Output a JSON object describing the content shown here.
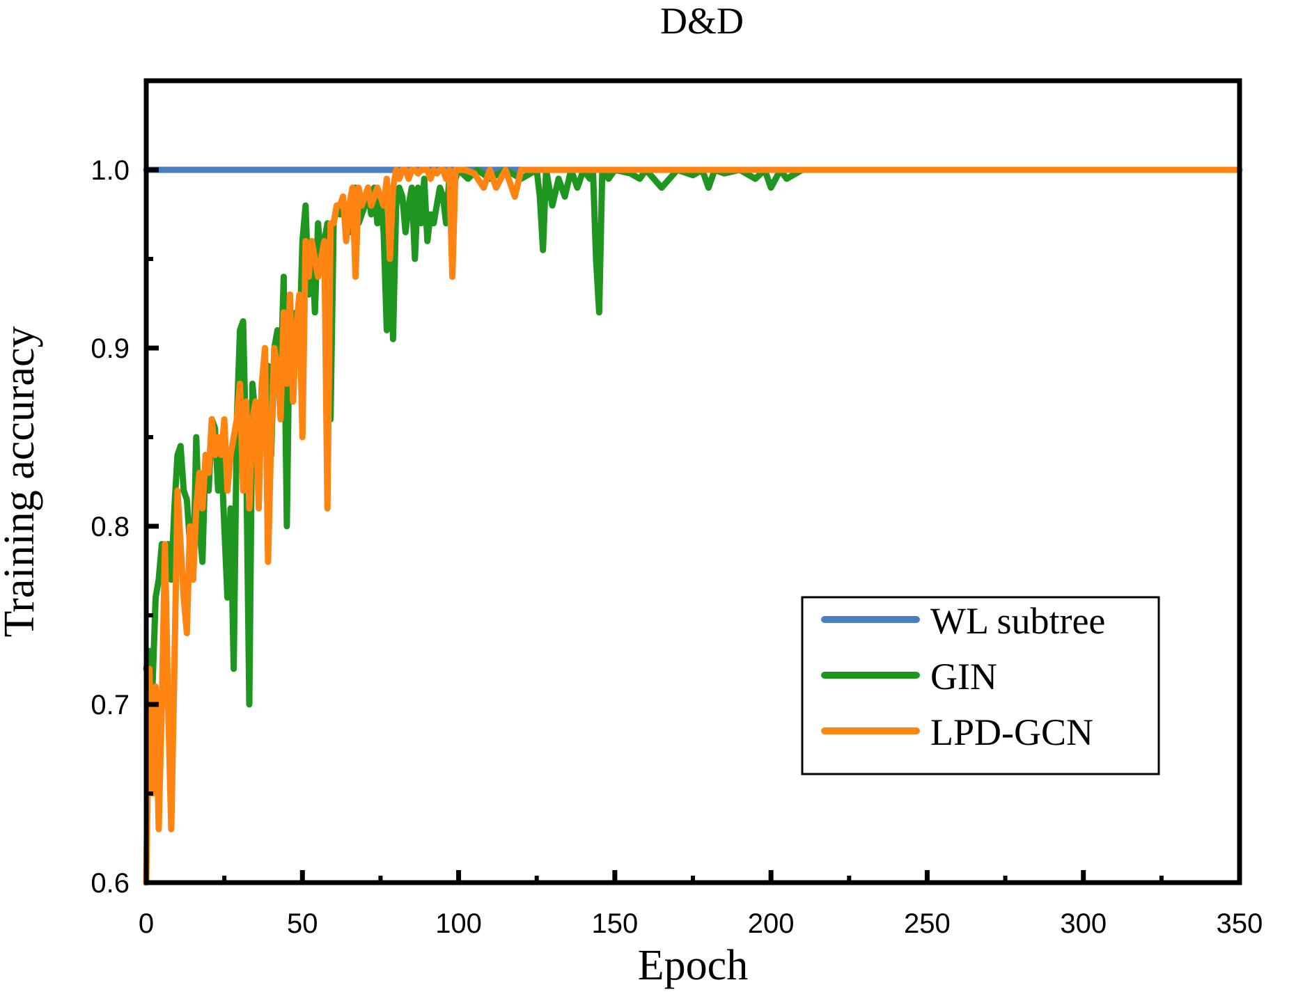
{
  "chart_data": {
    "type": "line",
    "title": "D&D",
    "xlabel": "Epoch",
    "ylabel": "Training accuracy",
    "xlim": [
      0,
      350
    ],
    "ylim": [
      0.6,
      1.05
    ],
    "xticks": [
      0,
      50,
      100,
      150,
      200,
      250,
      300,
      350
    ],
    "xtick_labels": [
      "0",
      "50",
      "100",
      "150",
      "200",
      "250",
      "300",
      "350"
    ],
    "yticks": [
      0.6,
      0.7,
      0.8,
      0.9,
      1.0
    ],
    "ytick_labels": [
      "0.6",
      "0.7",
      "0.8",
      "0.9",
      "1.0"
    ],
    "legend_position": "lower-right",
    "series": [
      {
        "name": "WL subtree",
        "color": "#4a7fbf",
        "x": [
          0,
          350
        ],
        "y": [
          1.0,
          1.0
        ]
      },
      {
        "name": "GIN",
        "color": "#1e9620",
        "x": [
          0,
          1,
          2,
          3,
          4,
          5,
          6,
          7,
          8,
          9,
          10,
          11,
          12,
          13,
          14,
          15,
          16,
          17,
          18,
          19,
          20,
          21,
          22,
          23,
          24,
          25,
          26,
          27,
          28,
          29,
          30,
          31,
          32,
          33,
          34,
          35,
          36,
          37,
          38,
          39,
          40,
          41,
          42,
          43,
          44,
          45,
          46,
          47,
          48,
          49,
          50,
          51,
          52,
          53,
          54,
          55,
          56,
          57,
          58,
          59,
          60,
          61,
          62,
          63,
          64,
          65,
          66,
          67,
          68,
          69,
          70,
          71,
          72,
          73,
          74,
          75,
          76,
          77,
          78,
          79,
          80,
          81,
          82,
          83,
          84,
          85,
          86,
          87,
          88,
          89,
          90,
          91,
          92,
          93,
          94,
          95,
          96,
          97,
          98,
          99,
          100,
          103,
          106,
          110,
          115,
          120,
          125,
          126,
          127,
          128,
          130,
          132,
          134,
          136,
          138,
          140,
          142,
          143,
          144,
          145,
          146,
          148,
          150,
          155,
          158,
          160,
          165,
          170,
          175,
          178,
          180,
          182,
          185,
          190,
          195,
          198,
          200,
          203,
          205,
          210,
          220,
          230,
          240,
          250,
          260,
          270,
          280,
          290,
          300,
          310,
          320,
          330,
          340,
          350
        ],
        "y": [
          0.72,
          0.73,
          0.71,
          0.76,
          0.77,
          0.79,
          0.77,
          0.79,
          0.77,
          0.81,
          0.84,
          0.845,
          0.82,
          0.815,
          0.79,
          0.77,
          0.85,
          0.8,
          0.78,
          0.84,
          0.82,
          0.86,
          0.855,
          0.82,
          0.84,
          0.8,
          0.76,
          0.81,
          0.72,
          0.86,
          0.91,
          0.915,
          0.84,
          0.7,
          0.88,
          0.86,
          0.83,
          0.88,
          0.86,
          0.89,
          0.84,
          0.9,
          0.91,
          0.88,
          0.94,
          0.8,
          0.93,
          0.87,
          0.92,
          0.9,
          0.96,
          0.98,
          0.93,
          0.96,
          0.92,
          0.97,
          0.95,
          0.96,
          0.97,
          0.86,
          0.97,
          0.98,
          0.975,
          0.98,
          0.97,
          0.965,
          0.985,
          0.99,
          0.97,
          0.975,
          0.98,
          0.99,
          0.975,
          0.99,
          0.97,
          0.985,
          0.965,
          0.91,
          0.97,
          0.905,
          0.98,
          0.99,
          0.985,
          0.965,
          0.98,
          0.99,
          0.95,
          0.99,
          0.97,
          0.995,
          0.96,
          0.975,
          0.97,
          0.98,
          0.99,
          0.985,
          0.97,
          0.995,
          0.99,
          0.995,
          1.0,
          0.995,
          1.0,
          0.995,
          1.0,
          0.995,
          1.0,
          0.985,
          0.955,
          1.0,
          0.98,
          0.995,
          0.985,
          1.0,
          0.99,
          1.0,
          0.995,
          1.0,
          0.95,
          0.92,
          1.0,
          0.995,
          1.0,
          0.998,
          0.995,
          1.0,
          0.99,
          1.0,
          0.997,
          1.0,
          0.99,
          1.0,
          0.998,
          1.0,
          0.995,
          1.0,
          0.99,
          1.0,
          0.995,
          1.0,
          1.0,
          1.0,
          1.0,
          1.0,
          1.0,
          1.0,
          1.0,
          1.0,
          1.0,
          1.0,
          1.0,
          1.0,
          1.0,
          1.0
        ]
      },
      {
        "name": "LPD-GCN",
        "color": "#ff8412",
        "x": [
          0,
          1,
          2,
          3,
          4,
          5,
          6,
          7,
          8,
          9,
          10,
          11,
          12,
          13,
          14,
          15,
          16,
          17,
          18,
          19,
          20,
          21,
          22,
          23,
          24,
          25,
          26,
          27,
          28,
          29,
          30,
          31,
          32,
          33,
          34,
          35,
          36,
          37,
          38,
          39,
          40,
          41,
          42,
          43,
          44,
          45,
          46,
          47,
          48,
          49,
          50,
          51,
          52,
          53,
          54,
          55,
          56,
          57,
          58,
          59,
          60,
          61,
          62,
          63,
          64,
          65,
          66,
          67,
          68,
          69,
          70,
          71,
          72,
          73,
          74,
          75,
          76,
          77,
          78,
          79,
          80,
          81,
          82,
          83,
          84,
          85,
          86,
          87,
          88,
          89,
          90,
          91,
          92,
          93,
          94,
          95,
          96,
          97,
          98,
          99,
          100,
          102,
          105,
          108,
          110,
          112,
          115,
          118,
          120,
          125,
          130,
          140,
          150,
          160,
          180,
          200,
          250,
          300,
          350
        ],
        "y": [
          0.6,
          0.72,
          0.65,
          0.71,
          0.63,
          0.7,
          0.79,
          0.7,
          0.63,
          0.72,
          0.82,
          0.79,
          0.76,
          0.74,
          0.8,
          0.77,
          0.81,
          0.83,
          0.81,
          0.84,
          0.83,
          0.86,
          0.84,
          0.85,
          0.84,
          0.86,
          0.82,
          0.84,
          0.85,
          0.86,
          0.88,
          0.82,
          0.87,
          0.81,
          0.86,
          0.87,
          0.81,
          0.88,
          0.9,
          0.78,
          0.85,
          0.9,
          0.89,
          0.86,
          0.92,
          0.88,
          0.93,
          0.87,
          0.91,
          0.93,
          0.85,
          0.96,
          0.94,
          0.96,
          0.95,
          0.94,
          0.95,
          0.96,
          0.81,
          0.97,
          0.97,
          0.98,
          0.98,
          0.985,
          0.96,
          0.98,
          0.99,
          0.94,
          0.99,
          0.98,
          0.985,
          0.99,
          0.98,
          0.985,
          0.99,
          0.985,
          0.98,
          0.995,
          0.95,
          0.99,
          1.0,
          0.995,
          1.0,
          1.0,
          0.995,
          1.0,
          1.0,
          0.998,
          1.0,
          1.0,
          1.0,
          0.995,
          1.0,
          0.998,
          1.0,
          1.0,
          0.995,
          1.0,
          0.94,
          1.0,
          1.0,
          1.0,
          0.998,
          0.99,
          1.0,
          0.99,
          1.0,
          0.985,
          1.0,
          1.0,
          1.0,
          1.0,
          1.0,
          1.0,
          1.0,
          1.0,
          1.0,
          1.0,
          1.0
        ]
      }
    ]
  }
}
